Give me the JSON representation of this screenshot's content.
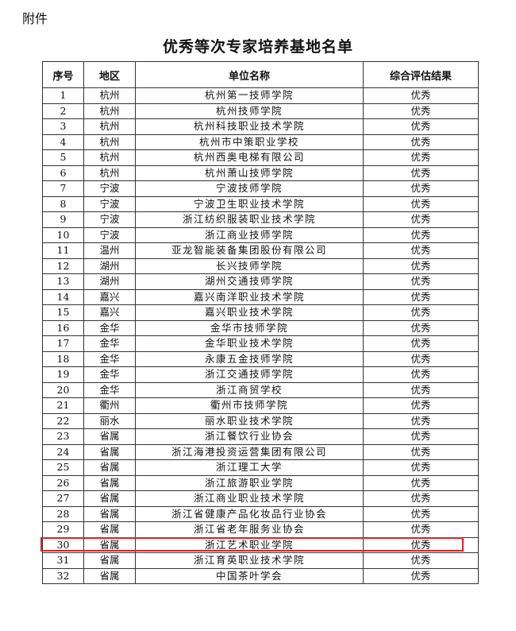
{
  "header": {
    "attachment": "附件",
    "title": "优秀等次专家培养基地名单"
  },
  "table": {
    "columns": [
      "序号",
      "地区",
      "单位名称",
      "综合评估结果"
    ],
    "rows": [
      [
        "1",
        "杭州",
        "杭州第一技师学院",
        "优秀"
      ],
      [
        "2",
        "杭州",
        "杭州技师学院",
        "优秀"
      ],
      [
        "3",
        "杭州",
        "杭州科技职业技术学院",
        "优秀"
      ],
      [
        "4",
        "杭州",
        "杭州市中策职业学校",
        "优秀"
      ],
      [
        "5",
        "杭州",
        "杭州西奥电梯有限公司",
        "优秀"
      ],
      [
        "6",
        "杭州",
        "杭州萧山技师学院",
        "优秀"
      ],
      [
        "7",
        "宁波",
        "宁波技师学院",
        "优秀"
      ],
      [
        "8",
        "宁波",
        "宁波卫生职业技术学院",
        "优秀"
      ],
      [
        "9",
        "宁波",
        "浙江纺织服装职业技术学院",
        "优秀"
      ],
      [
        "10",
        "宁波",
        "浙江商业技师学院",
        "优秀"
      ],
      [
        "11",
        "温州",
        "亚龙智能装备集团股份有限公司",
        "优秀"
      ],
      [
        "12",
        "湖州",
        "长兴技师学院",
        "优秀"
      ],
      [
        "13",
        "湖州",
        "湖州交通技师学院",
        "优秀"
      ],
      [
        "14",
        "嘉兴",
        "嘉兴南洋职业技术学院",
        "优秀"
      ],
      [
        "15",
        "嘉兴",
        "嘉兴职业技术学院",
        "优秀"
      ],
      [
        "16",
        "金华",
        "金华市技师学院",
        "优秀"
      ],
      [
        "17",
        "金华",
        "金华职业技术学院",
        "优秀"
      ],
      [
        "18",
        "金华",
        "永康五金技师学院",
        "优秀"
      ],
      [
        "19",
        "金华",
        "浙江交通技师学院",
        "优秀"
      ],
      [
        "20",
        "金华",
        "浙江商贸学校",
        "优秀"
      ],
      [
        "21",
        "衢州",
        "衢州市技师学院",
        "优秀"
      ],
      [
        "22",
        "丽水",
        "丽水职业技术学院",
        "优秀"
      ],
      [
        "23",
        "省属",
        "浙江餐饮行业协会",
        "优秀"
      ],
      [
        "24",
        "省属",
        "浙江海港投资运营集团有限公司",
        "优秀"
      ],
      [
        "25",
        "省属",
        "浙江理工大学",
        "优秀"
      ],
      [
        "26",
        "省属",
        "浙江旅游职业学院",
        "优秀"
      ],
      [
        "27",
        "省属",
        "浙江商业职业技术学院",
        "优秀"
      ],
      [
        "28",
        "省属",
        "浙江省健康产品化妆品行业协会",
        "优秀"
      ],
      [
        "29",
        "省属",
        "浙江省老年服务业协会",
        "优秀"
      ],
      [
        "30",
        "省属",
        "浙江艺术职业学院",
        "优秀"
      ],
      [
        "31",
        "省属",
        "浙江育英职业技术学院",
        "优秀"
      ],
      [
        "32",
        "省属",
        "中国茶叶学会",
        "优秀"
      ]
    ]
  }
}
